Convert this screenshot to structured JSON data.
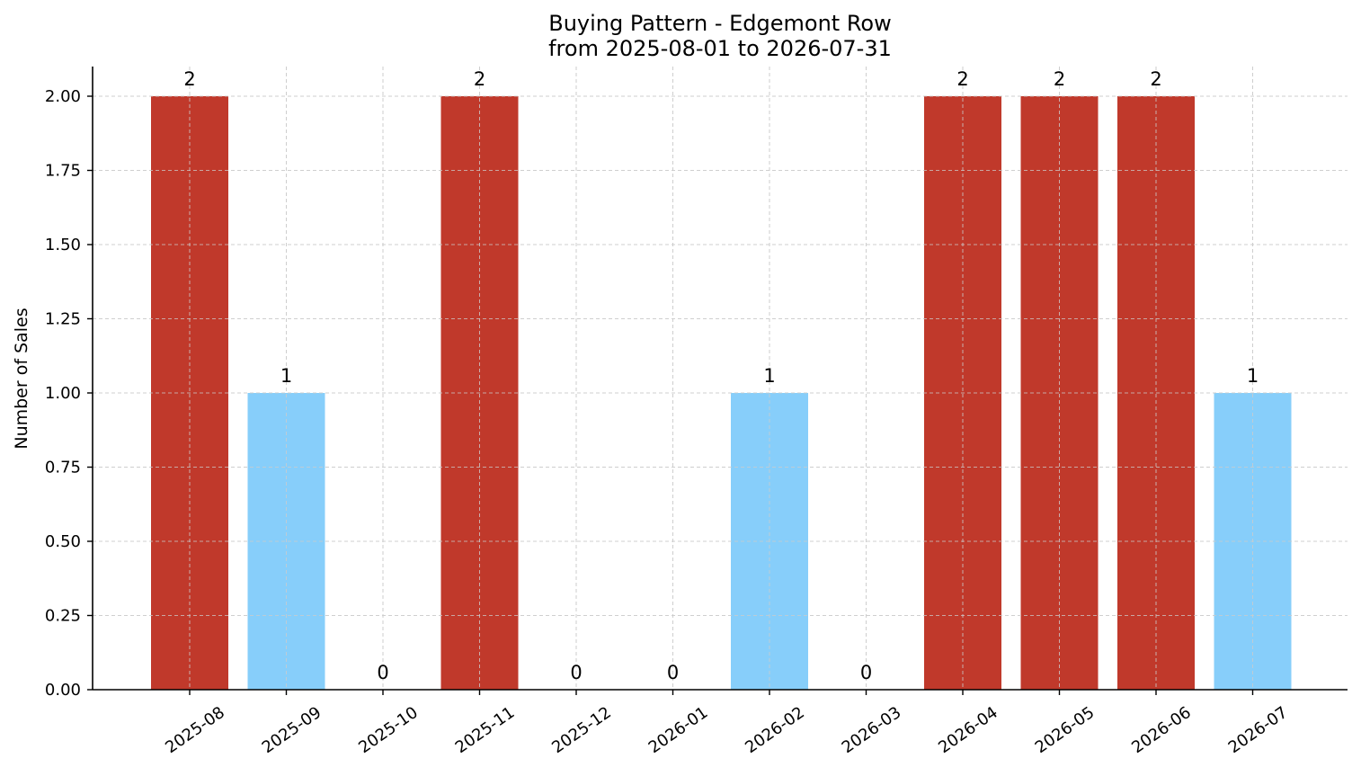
{
  "chart_data": {
    "type": "bar",
    "title": "Buying Pattern - Edgemont Row",
    "subtitle": "from 2025-08-01 to 2026-07-31",
    "xlabel": "",
    "ylabel": "Number of Sales",
    "categories": [
      "2025-08",
      "2025-09",
      "2025-10",
      "2025-11",
      "2025-12",
      "2026-01",
      "2026-02",
      "2026-03",
      "2026-04",
      "2026-05",
      "2026-06",
      "2026-07"
    ],
    "values": [
      2,
      1,
      0,
      2,
      0,
      0,
      1,
      0,
      2,
      2,
      2,
      1
    ],
    "data_labels": [
      "2",
      "1",
      "0",
      "2",
      "0",
      "0",
      "1",
      "0",
      "2",
      "2",
      "2",
      "1"
    ],
    "ylim": [
      0,
      2.1
    ],
    "yticks": [
      0,
      0.25,
      0.5,
      0.75,
      1.0,
      1.25,
      1.5,
      1.75,
      2.0
    ],
    "ytick_labels": [
      "0.00",
      "0.25",
      "0.50",
      "0.75",
      "1.00",
      "1.25",
      "1.50",
      "1.75",
      "2.00"
    ],
    "grid": true,
    "colors": {
      "high": "#c0392b",
      "low": "#87cefa"
    }
  }
}
